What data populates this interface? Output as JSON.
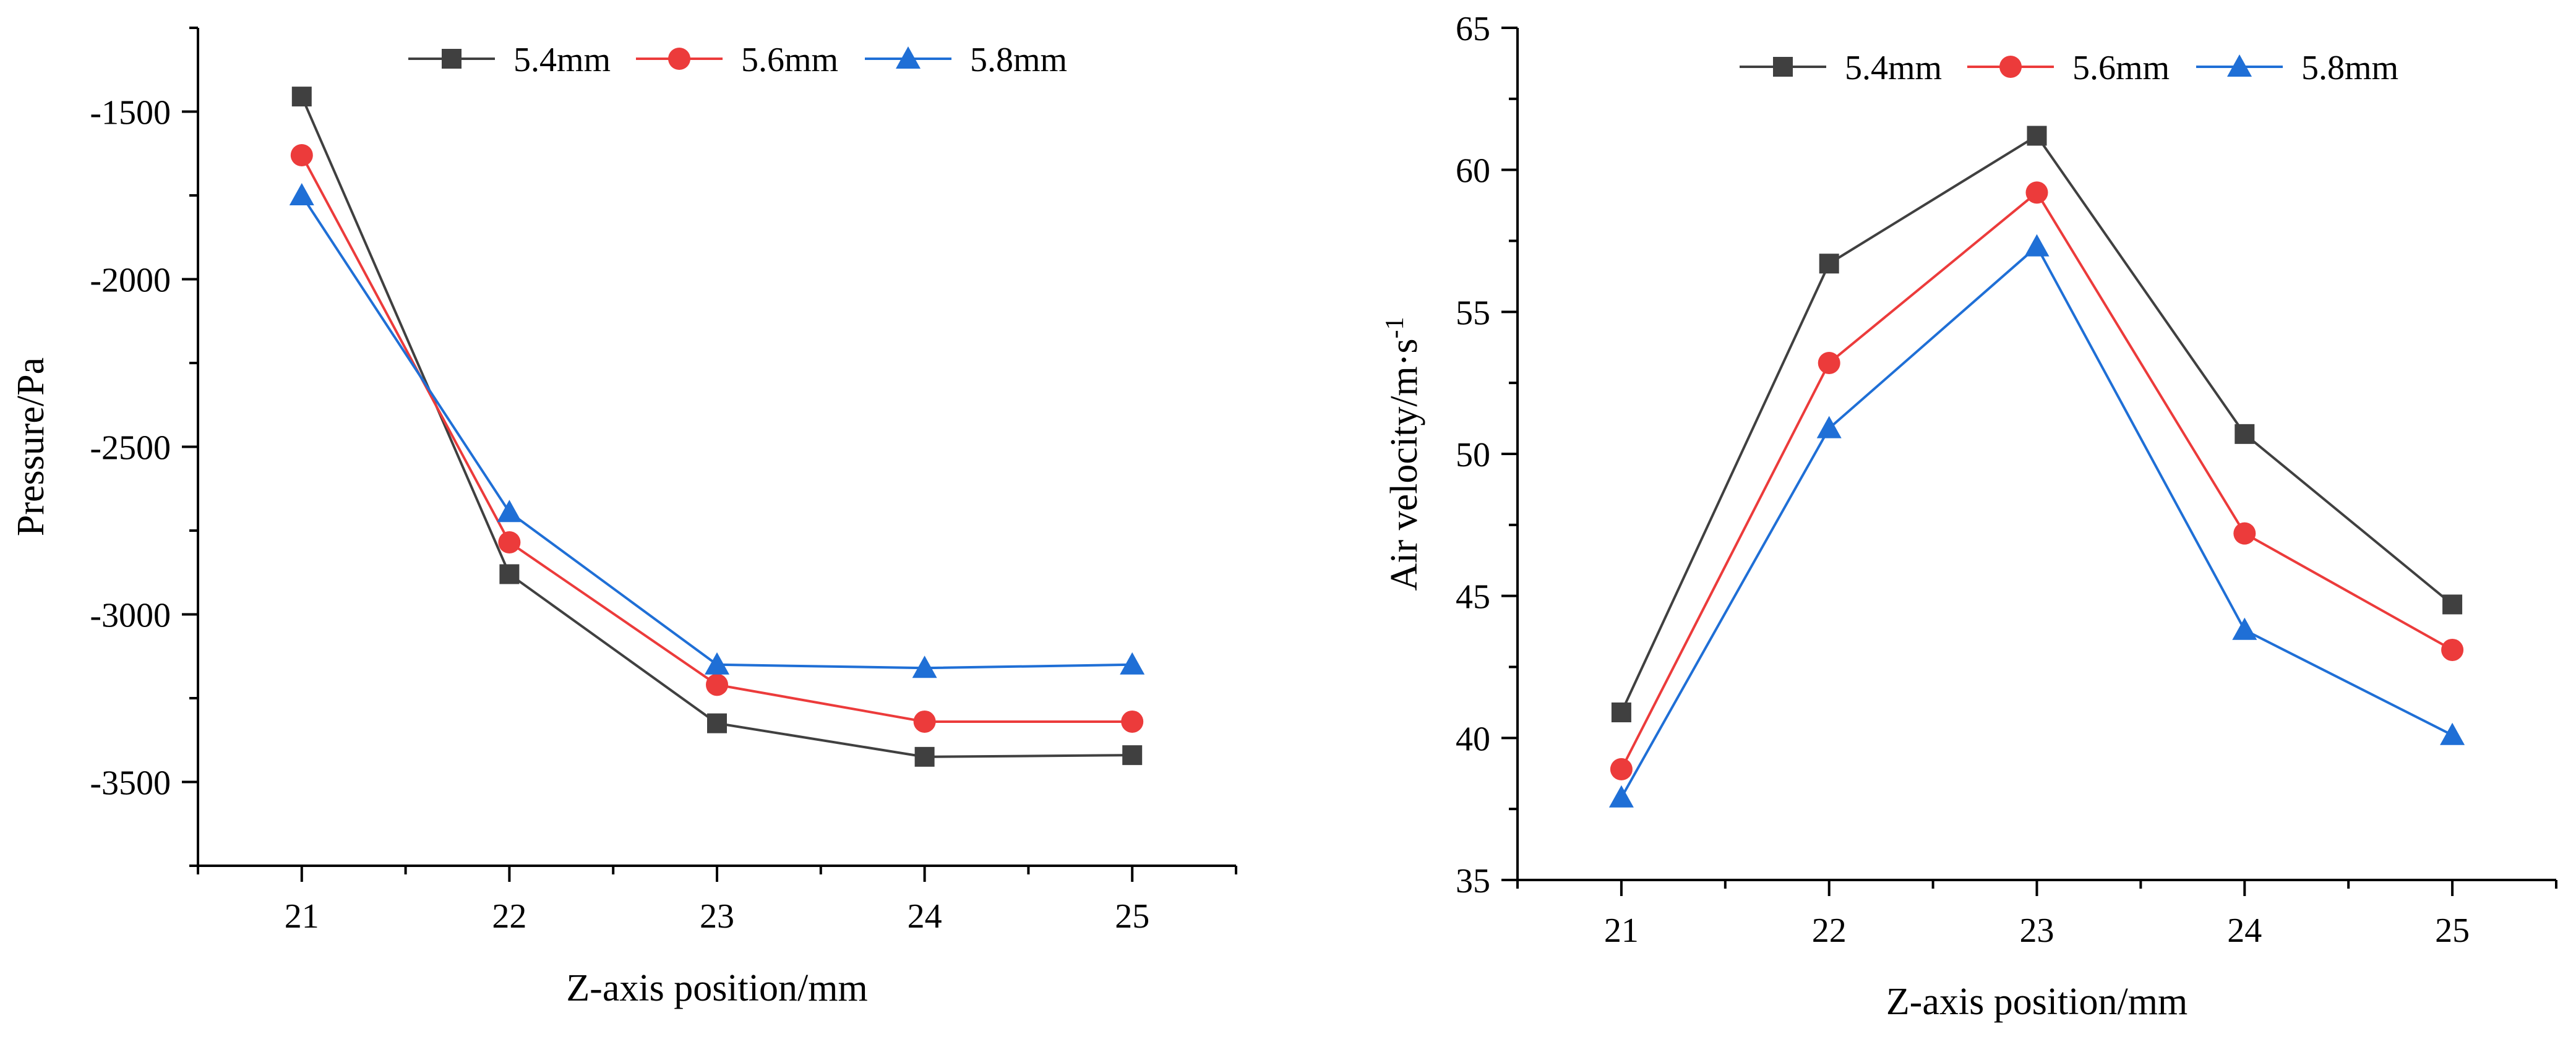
{
  "chart_data": [
    {
      "type": "line",
      "title": "",
      "xlabel": "Z-axis position/mm",
      "ylabel": "Pressure/Pa",
      "x": [
        21,
        22,
        23,
        24,
        25
      ],
      "x_ticks": [
        "21",
        "22",
        "23",
        "24",
        "25"
      ],
      "xlim": [
        20.5,
        25.5
      ],
      "ylim": [
        -3750,
        -1250
      ],
      "y_ticks": [
        "-1500",
        "-2000",
        "-2500",
        "-3000",
        "-3500"
      ],
      "y_tick_values": [
        -1500,
        -2000,
        -2500,
        -3000,
        -3500
      ],
      "grid": false,
      "legend_position": "top",
      "series": [
        {
          "name": "5.4mm",
          "color": "#404040",
          "marker": "square",
          "values": [
            -1455,
            -2880,
            -3325,
            -3425,
            -3420
          ]
        },
        {
          "name": "5.6mm",
          "color": "#ec3b3b",
          "marker": "circle",
          "values": [
            -1630,
            -2785,
            -3210,
            -3320,
            -3320
          ]
        },
        {
          "name": "5.8mm",
          "color": "#1f6fd6",
          "marker": "triangle",
          "values": [
            -1750,
            -2695,
            -3150,
            -3160,
            -3150
          ]
        }
      ]
    },
    {
      "type": "line",
      "title": "",
      "xlabel": "Z-axis position/mm",
      "ylabel": "Air velocity/m·s",
      "ylabel_sup": "-1",
      "x": [
        21,
        22,
        23,
        24,
        25
      ],
      "x_ticks": [
        "21",
        "22",
        "23",
        "24",
        "25"
      ],
      "xlim": [
        20.5,
        25.5
      ],
      "ylim": [
        35,
        65
      ],
      "y_ticks": [
        "35",
        "40",
        "45",
        "50",
        "55",
        "60",
        "65"
      ],
      "y_tick_values": [
        35,
        40,
        45,
        50,
        55,
        60,
        65
      ],
      "grid": false,
      "legend_position": "top",
      "series": [
        {
          "name": "5.4mm",
          "color": "#404040",
          "marker": "square",
          "values": [
            40.9,
            56.7,
            61.2,
            50.7,
            44.7
          ]
        },
        {
          "name": "5.6mm",
          "color": "#ec3b3b",
          "marker": "circle",
          "values": [
            38.9,
            53.2,
            59.2,
            47.2,
            43.1
          ]
        },
        {
          "name": "5.8mm",
          "color": "#1f6fd6",
          "marker": "triangle",
          "values": [
            37.9,
            50.9,
            57.3,
            43.8,
            40.1
          ]
        }
      ]
    }
  ]
}
